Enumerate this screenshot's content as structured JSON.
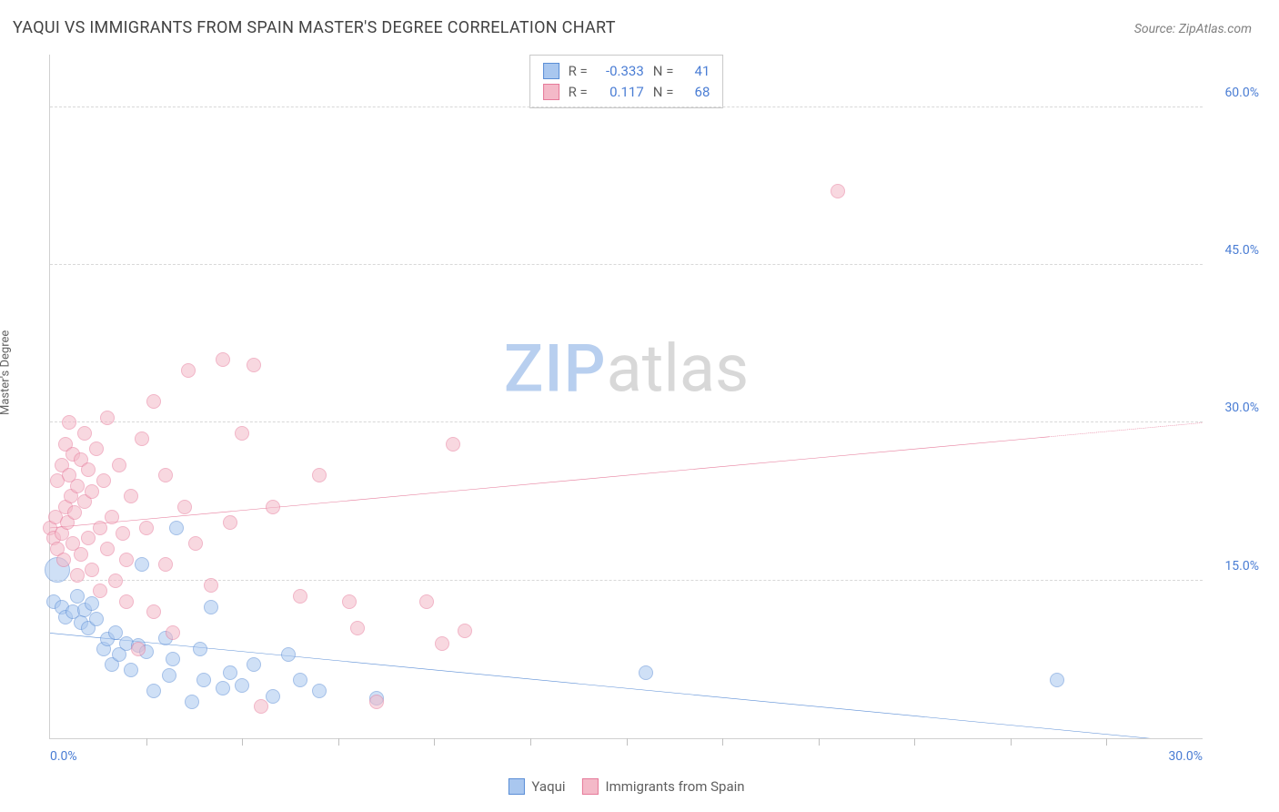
{
  "title": "YAQUI VS IMMIGRANTS FROM SPAIN MASTER'S DEGREE CORRELATION CHART",
  "source_prefix": "Source: ",
  "source_name": "ZipAtlas.com",
  "y_axis_label": "Master's Degree",
  "watermark": {
    "part1": "ZIP",
    "part2": "atlas"
  },
  "chart": {
    "type": "scatter",
    "background_color": "#ffffff",
    "grid_color": "#d8d8d8",
    "axis_color": "#d0d0d0",
    "tick_label_color": "#4a7dd4",
    "tick_fontsize": 14,
    "title_fontsize": 18,
    "xlim": [
      0,
      30
    ],
    "ylim": [
      0,
      65
    ],
    "y_ticks": [
      {
        "value": 15,
        "label": "15.0%"
      },
      {
        "value": 30,
        "label": "30.0%"
      },
      {
        "value": 45,
        "label": "45.0%"
      },
      {
        "value": 60,
        "label": "60.0%"
      }
    ],
    "x_ticks_minor": [
      2.5,
      5,
      7.5,
      10,
      12.5,
      15,
      17.5,
      20,
      22.5,
      25,
      27.5
    ],
    "x_tick_labels": {
      "min": "0.0%",
      "max": "30.0%"
    },
    "marker_radius": 8,
    "marker_radius_large": 14,
    "marker_opacity": 0.55,
    "line_width": 2
  },
  "series": [
    {
      "key": "yaqui",
      "label": "Yaqui",
      "color_fill": "#a9c7ef",
      "color_stroke": "#5b8ed6",
      "R": "-0.333",
      "N": "41",
      "trend": {
        "x1": 0,
        "y1": 10.0,
        "x2": 30,
        "y2": -0.5,
        "dash_from_x": 30
      },
      "points": [
        [
          0.1,
          13.0
        ],
        [
          0.2,
          16.0,
          "L"
        ],
        [
          0.3,
          12.5
        ],
        [
          0.4,
          11.5
        ],
        [
          0.6,
          12.0
        ],
        [
          0.7,
          13.5
        ],
        [
          0.8,
          11.0
        ],
        [
          0.9,
          12.2
        ],
        [
          1.0,
          10.5
        ],
        [
          1.1,
          12.8
        ],
        [
          1.2,
          11.3
        ],
        [
          1.4,
          8.5
        ],
        [
          1.5,
          9.4
        ],
        [
          1.6,
          7.0
        ],
        [
          1.7,
          10.0
        ],
        [
          1.8,
          8.0
        ],
        [
          2.0,
          9.0
        ],
        [
          2.1,
          6.5
        ],
        [
          2.3,
          8.8
        ],
        [
          2.4,
          16.5
        ],
        [
          2.5,
          8.2
        ],
        [
          2.7,
          4.5
        ],
        [
          3.0,
          9.5
        ],
        [
          3.1,
          6.0
        ],
        [
          3.2,
          7.5
        ],
        [
          3.3,
          20.0
        ],
        [
          3.7,
          3.5
        ],
        [
          3.9,
          8.5
        ],
        [
          4.0,
          5.5
        ],
        [
          4.2,
          12.5
        ],
        [
          4.5,
          4.8
        ],
        [
          4.7,
          6.2
        ],
        [
          5.0,
          5.0
        ],
        [
          5.3,
          7.0
        ],
        [
          5.8,
          4.0
        ],
        [
          6.2,
          8.0
        ],
        [
          6.5,
          5.5
        ],
        [
          7.0,
          4.5
        ],
        [
          8.5,
          3.8
        ],
        [
          15.5,
          6.2
        ],
        [
          26.2,
          5.5
        ]
      ]
    },
    {
      "key": "spain",
      "label": "Immigrants from Spain",
      "color_fill": "#f4b9c8",
      "color_stroke": "#e67a9a",
      "R": "0.117",
      "N": "68",
      "trend": {
        "x1": 0,
        "y1": 20.0,
        "x2": 30,
        "y2": 30.0,
        "dash_from_x": 26
      },
      "points": [
        [
          0.0,
          20.0
        ],
        [
          0.1,
          19.0
        ],
        [
          0.15,
          21.0
        ],
        [
          0.2,
          18.0
        ],
        [
          0.2,
          24.5
        ],
        [
          0.3,
          19.5
        ],
        [
          0.3,
          26.0
        ],
        [
          0.35,
          17.0
        ],
        [
          0.4,
          22.0
        ],
        [
          0.4,
          28.0
        ],
        [
          0.45,
          20.5
        ],
        [
          0.5,
          25.0
        ],
        [
          0.5,
          30.0
        ],
        [
          0.55,
          23.0
        ],
        [
          0.6,
          27.0
        ],
        [
          0.6,
          18.5
        ],
        [
          0.65,
          21.5
        ],
        [
          0.7,
          15.5
        ],
        [
          0.7,
          24.0
        ],
        [
          0.8,
          26.5
        ],
        [
          0.8,
          17.5
        ],
        [
          0.9,
          22.5
        ],
        [
          0.9,
          29.0
        ],
        [
          1.0,
          19.0
        ],
        [
          1.0,
          25.5
        ],
        [
          1.1,
          16.0
        ],
        [
          1.1,
          23.5
        ],
        [
          1.2,
          27.5
        ],
        [
          1.3,
          20.0
        ],
        [
          1.3,
          14.0
        ],
        [
          1.4,
          24.5
        ],
        [
          1.5,
          18.0
        ],
        [
          1.5,
          30.5
        ],
        [
          1.6,
          21.0
        ],
        [
          1.7,
          15.0
        ],
        [
          1.8,
          26.0
        ],
        [
          1.9,
          19.5
        ],
        [
          2.0,
          13.0
        ],
        [
          2.0,
          17.0
        ],
        [
          2.1,
          23.0
        ],
        [
          2.3,
          8.5
        ],
        [
          2.4,
          28.5
        ],
        [
          2.5,
          20.0
        ],
        [
          2.7,
          12.0
        ],
        [
          2.7,
          32.0
        ],
        [
          3.0,
          25.0
        ],
        [
          3.0,
          16.5
        ],
        [
          3.2,
          10.0
        ],
        [
          3.5,
          22.0
        ],
        [
          3.6,
          35.0
        ],
        [
          3.8,
          18.5
        ],
        [
          4.2,
          14.5
        ],
        [
          4.5,
          36.0
        ],
        [
          4.7,
          20.5
        ],
        [
          5.0,
          29.0
        ],
        [
          5.3,
          35.5
        ],
        [
          5.5,
          3.0
        ],
        [
          5.8,
          22.0
        ],
        [
          6.5,
          13.5
        ],
        [
          7.0,
          25.0
        ],
        [
          7.8,
          13.0
        ],
        [
          8.0,
          10.5
        ],
        [
          8.5,
          3.5
        ],
        [
          9.8,
          13.0
        ],
        [
          10.5,
          28.0
        ],
        [
          10.2,
          9.0
        ],
        [
          10.8,
          10.2
        ],
        [
          20.5,
          52.0
        ]
      ]
    }
  ],
  "stats_legend": {
    "R_label": "R =",
    "N_label": "N ="
  }
}
